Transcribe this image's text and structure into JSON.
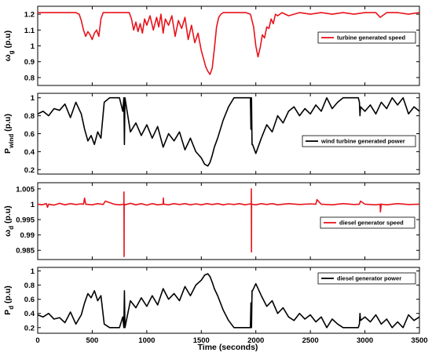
{
  "figure": {
    "xlabel": "Time (seconds)"
  },
  "chart_data": [
    {
      "type": "line",
      "ylabel": {
        "base": "ω",
        "sub": "g",
        "rest": " (p.u)"
      },
      "ylim": [
        0.75,
        1.25
      ],
      "yticks": [
        0.8,
        0.9,
        1,
        1.1,
        1.2
      ],
      "yticklabels": [
        "0.8",
        "0.9",
        "1",
        "1.1",
        "1.2"
      ],
      "xlim": [
        0,
        3500
      ],
      "xticks": [
        0,
        500,
        1000,
        1500,
        2000,
        2500,
        3000,
        3500
      ],
      "xticklabels": [
        "0",
        "500",
        "1000",
        "1500",
        "2000",
        "2500",
        "3000",
        "3500"
      ],
      "show_xticklabels": false,
      "legend_position": "right",
      "series": [
        {
          "name": "turbine generated speed",
          "color": "#e8141c",
          "x": [
            0,
            100,
            200,
            300,
            350,
            380,
            400,
            420,
            440,
            460,
            480,
            500,
            520,
            540,
            560,
            580,
            600,
            620,
            700,
            800,
            840,
            860,
            880,
            900,
            920,
            940,
            960,
            980,
            1000,
            1030,
            1060,
            1090,
            1110,
            1130,
            1150,
            1170,
            1200,
            1230,
            1260,
            1290,
            1320,
            1350,
            1380,
            1410,
            1440,
            1470,
            1500,
            1520,
            1540,
            1560,
            1580,
            1600,
            1620,
            1640,
            1660,
            1680,
            1700,
            1730,
            1760,
            1790,
            1820,
            1850,
            1880,
            1910,
            1950,
            1980,
            2000,
            2020,
            2040,
            2060,
            2080,
            2100,
            2120,
            2140,
            2160,
            2180,
            2200,
            2240,
            2300,
            2400,
            2500,
            2600,
            2700,
            2800,
            2900,
            3000,
            3100,
            3140,
            3200,
            3300,
            3400,
            3500
          ],
          "y": [
            1.21,
            1.21,
            1.21,
            1.21,
            1.21,
            1.2,
            1.16,
            1.1,
            1.06,
            1.09,
            1.07,
            1.04,
            1.08,
            1.1,
            1.06,
            1.17,
            1.21,
            1.21,
            1.21,
            1.21,
            1.21,
            1.17,
            1.1,
            1.15,
            1.09,
            1.14,
            1.08,
            1.17,
            1.13,
            1.19,
            1.1,
            1.18,
            1.12,
            1.2,
            1.08,
            1.17,
            1.13,
            1.19,
            1.06,
            1.16,
            1.11,
            1.18,
            1.04,
            1.13,
            1.02,
            1.08,
            0.97,
            0.92,
            0.87,
            0.84,
            0.82,
            0.86,
            0.98,
            1.12,
            1.18,
            1.2,
            1.21,
            1.21,
            1.21,
            1.21,
            1.21,
            1.21,
            1.21,
            1.21,
            1.2,
            1.12,
            1.0,
            0.93,
            0.99,
            1.07,
            1.05,
            1.12,
            1.11,
            1.17,
            1.14,
            1.2,
            1.19,
            1.21,
            1.19,
            1.21,
            1.2,
            1.21,
            1.2,
            1.21,
            1.2,
            1.21,
            1.21,
            1.18,
            1.21,
            1.21,
            1.2,
            1.21
          ]
        }
      ]
    },
    {
      "type": "line",
      "ylabel": {
        "base": "P",
        "sub": "wind",
        "rest": " (p.u)"
      },
      "ylim": [
        0.15,
        1.05
      ],
      "yticks": [
        0.2,
        0.4,
        0.6,
        0.8,
        1
      ],
      "yticklabels": [
        "0.2",
        "0.4",
        "0.6",
        "0.8",
        "1"
      ],
      "xlim": [
        0,
        3500
      ],
      "xticks": [
        0,
        500,
        1000,
        1500,
        2000,
        2500,
        3000,
        3500
      ],
      "xticklabels": [
        "0",
        "500",
        "1000",
        "1500",
        "2000",
        "2500",
        "3000",
        "3500"
      ],
      "show_xticklabels": false,
      "legend_position": "bottom-right",
      "series": [
        {
          "name": "wind turbine generated power",
          "color": "#000000",
          "x": [
            0,
            50,
            100,
            150,
            200,
            250,
            300,
            350,
            400,
            430,
            460,
            490,
            520,
            550,
            580,
            610,
            660,
            700,
            750,
            780,
            790,
            795,
            800,
            850,
            900,
            950,
            1000,
            1050,
            1100,
            1150,
            1200,
            1250,
            1300,
            1350,
            1400,
            1450,
            1500,
            1530,
            1560,
            1580,
            1600,
            1620,
            1650,
            1700,
            1750,
            1800,
            1850,
            1880,
            1920,
            1950,
            1955,
            1960,
            1965,
            1970,
            2000,
            2050,
            2100,
            2150,
            2200,
            2250,
            2300,
            2350,
            2400,
            2450,
            2500,
            2550,
            2600,
            2650,
            2700,
            2750,
            2800,
            2850,
            2900,
            2940,
            2950,
            2955,
            2960,
            3000,
            3050,
            3100,
            3150,
            3200,
            3250,
            3300,
            3350,
            3400,
            3450,
            3500
          ],
          "y": [
            0.82,
            0.85,
            0.8,
            0.88,
            0.86,
            0.93,
            0.78,
            0.95,
            0.82,
            0.65,
            0.52,
            0.58,
            0.48,
            0.62,
            0.55,
            0.95,
            1.0,
            1.0,
            1.0,
            0.85,
            1.0,
            0.48,
            1.0,
            0.62,
            0.72,
            0.58,
            0.7,
            0.55,
            0.68,
            0.45,
            0.6,
            0.52,
            0.62,
            0.42,
            0.55,
            0.4,
            0.33,
            0.26,
            0.24,
            0.28,
            0.36,
            0.45,
            0.55,
            0.75,
            0.9,
            1.0,
            1.0,
            1.0,
            1.0,
            1.0,
            0.65,
            1.0,
            0.48,
            0.48,
            0.38,
            0.55,
            0.7,
            0.62,
            0.8,
            0.72,
            0.85,
            0.9,
            0.8,
            0.88,
            0.82,
            0.92,
            0.85,
            1.0,
            0.88,
            0.95,
            1.0,
            1.0,
            1.0,
            1.0,
            0.95,
            0.8,
            0.9,
            0.85,
            0.92,
            0.82,
            0.95,
            0.88,
            1.0,
            0.92,
            1.0,
            0.82,
            0.9,
            0.85
          ]
        }
      ]
    },
    {
      "type": "line",
      "ylabel": {
        "base": "ω",
        "sub": "d",
        "rest": " (p.u)"
      },
      "ylim": [
        0.982,
        1.007
      ],
      "yticks": [
        0.985,
        0.99,
        0.995,
        1,
        1.005
      ],
      "yticklabels": [
        "0.985",
        "0.99",
        "0.995",
        "1",
        "1.005"
      ],
      "xlim": [
        0,
        3500
      ],
      "xticks": [
        0,
        500,
        1000,
        1500,
        2000,
        2500,
        3000,
        3500
      ],
      "xticklabels": [
        "0",
        "500",
        "1000",
        "1500",
        "2000",
        "2500",
        "3000",
        "3500"
      ],
      "show_xticklabels": false,
      "legend_position": "right",
      "series": [
        {
          "name": "diesel generator speed",
          "color": "#e8141c",
          "x": [
            0,
            40,
            80,
            90,
            100,
            150,
            200,
            250,
            300,
            350,
            400,
            420,
            430,
            440,
            500,
            550,
            600,
            620,
            700,
            750,
            790,
            791,
            792,
            793,
            795,
            800,
            850,
            900,
            950,
            1000,
            1050,
            1100,
            1150,
            1152,
            1155,
            1200,
            1250,
            1300,
            1350,
            1400,
            1450,
            1500,
            1550,
            1600,
            1650,
            1700,
            1750,
            1800,
            1850,
            1900,
            1950,
            1958,
            1959,
            1960,
            1961,
            1962,
            2000,
            2050,
            2100,
            2150,
            2200,
            2300,
            2400,
            2500,
            2550,
            2560,
            2600,
            2700,
            2800,
            2900,
            2950,
            2960,
            3000,
            3100,
            3140,
            3142,
            3150,
            3200,
            3300,
            3400,
            3500
          ],
          "y": [
            1.0,
            0.9998,
            1.0002,
            0.999,
            1.0,
            0.9997,
            1.0003,
            0.9998,
            1.0002,
            0.9999,
            1.0001,
            1.0,
            1.002,
            1.0,
            0.9998,
            1.0002,
            0.9999,
            1.001,
            1.0,
            0.9998,
            1.0,
            1.004,
            0.983,
            1.0,
            1.0,
            0.9998,
            1.0003,
            0.9998,
            1.0002,
            0.9997,
            1.0002,
            0.9998,
            1.0,
            1.002,
            1.0,
            0.9998,
            1.0002,
            0.9999,
            1.0002,
            0.9998,
            1.0001,
            0.9998,
            1.0002,
            0.9999,
            1.0002,
            0.9998,
            1.0001,
            0.9999,
            1.0002,
            0.9998,
            1.0001,
            1.0,
            1.005,
            0.9845,
            1.0,
            1.0,
            0.9998,
            1.0002,
            0.9999,
            1.0002,
            0.9998,
            1.0002,
            0.9999,
            1.0001,
            1.0,
            1.0015,
            1.0,
            0.9998,
            1.0002,
            0.9999,
            1.0,
            1.001,
            1.0,
            0.9998,
            1.0,
            0.9975,
            1.0,
            0.9998,
            1.0002,
            0.9999,
            1.0
          ]
        }
      ]
    },
    {
      "type": "line",
      "ylabel": {
        "base": "P",
        "sub": "d",
        "rest": " (p.u)"
      },
      "ylim": [
        0.12,
        1.05
      ],
      "yticks": [
        0.2,
        0.4,
        0.6,
        0.8,
        1
      ],
      "yticklabels": [
        "0.2",
        "0.4",
        "0.6",
        "0.8",
        "1"
      ],
      "xlim": [
        0,
        3500
      ],
      "xticks": [
        0,
        500,
        1000,
        1500,
        2000,
        2500,
        3000,
        3500
      ],
      "xticklabels": [
        "0",
        "500",
        "1000",
        "1500",
        "2000",
        "2500",
        "3000",
        "3500"
      ],
      "show_xticklabels": true,
      "legend_position": "top-right",
      "series": [
        {
          "name": "diesel generator power",
          "color": "#000000",
          "x": [
            0,
            50,
            100,
            150,
            200,
            250,
            300,
            350,
            400,
            430,
            460,
            490,
            520,
            550,
            580,
            610,
            660,
            700,
            750,
            780,
            790,
            795,
            800,
            850,
            900,
            950,
            1000,
            1050,
            1100,
            1150,
            1200,
            1250,
            1300,
            1350,
            1400,
            1450,
            1500,
            1530,
            1560,
            1580,
            1600,
            1620,
            1650,
            1700,
            1750,
            1800,
            1850,
            1880,
            1920,
            1950,
            1955,
            1960,
            1965,
            1970,
            2000,
            2050,
            2100,
            2150,
            2200,
            2250,
            2300,
            2350,
            2400,
            2450,
            2500,
            2550,
            2600,
            2650,
            2700,
            2750,
            2800,
            2850,
            2900,
            2940,
            2950,
            2955,
            2960,
            3000,
            3050,
            3100,
            3150,
            3200,
            3250,
            3300,
            3350,
            3400,
            3450,
            3500
          ],
          "y": [
            0.38,
            0.35,
            0.4,
            0.32,
            0.34,
            0.27,
            0.42,
            0.25,
            0.38,
            0.55,
            0.68,
            0.62,
            0.72,
            0.58,
            0.65,
            0.25,
            0.2,
            0.2,
            0.2,
            0.35,
            0.2,
            0.72,
            0.2,
            0.58,
            0.48,
            0.62,
            0.5,
            0.65,
            0.52,
            0.75,
            0.6,
            0.68,
            0.58,
            0.78,
            0.65,
            0.8,
            0.87,
            0.94,
            0.96,
            0.92,
            0.84,
            0.75,
            0.65,
            0.45,
            0.3,
            0.2,
            0.2,
            0.2,
            0.2,
            0.2,
            0.55,
            0.2,
            0.72,
            0.72,
            0.82,
            0.65,
            0.5,
            0.58,
            0.4,
            0.48,
            0.35,
            0.3,
            0.4,
            0.32,
            0.38,
            0.28,
            0.35,
            0.2,
            0.32,
            0.25,
            0.2,
            0.2,
            0.2,
            0.2,
            0.25,
            0.4,
            0.3,
            0.35,
            0.28,
            0.38,
            0.25,
            0.32,
            0.2,
            0.28,
            0.2,
            0.38,
            0.3,
            0.35
          ]
        }
      ]
    }
  ]
}
